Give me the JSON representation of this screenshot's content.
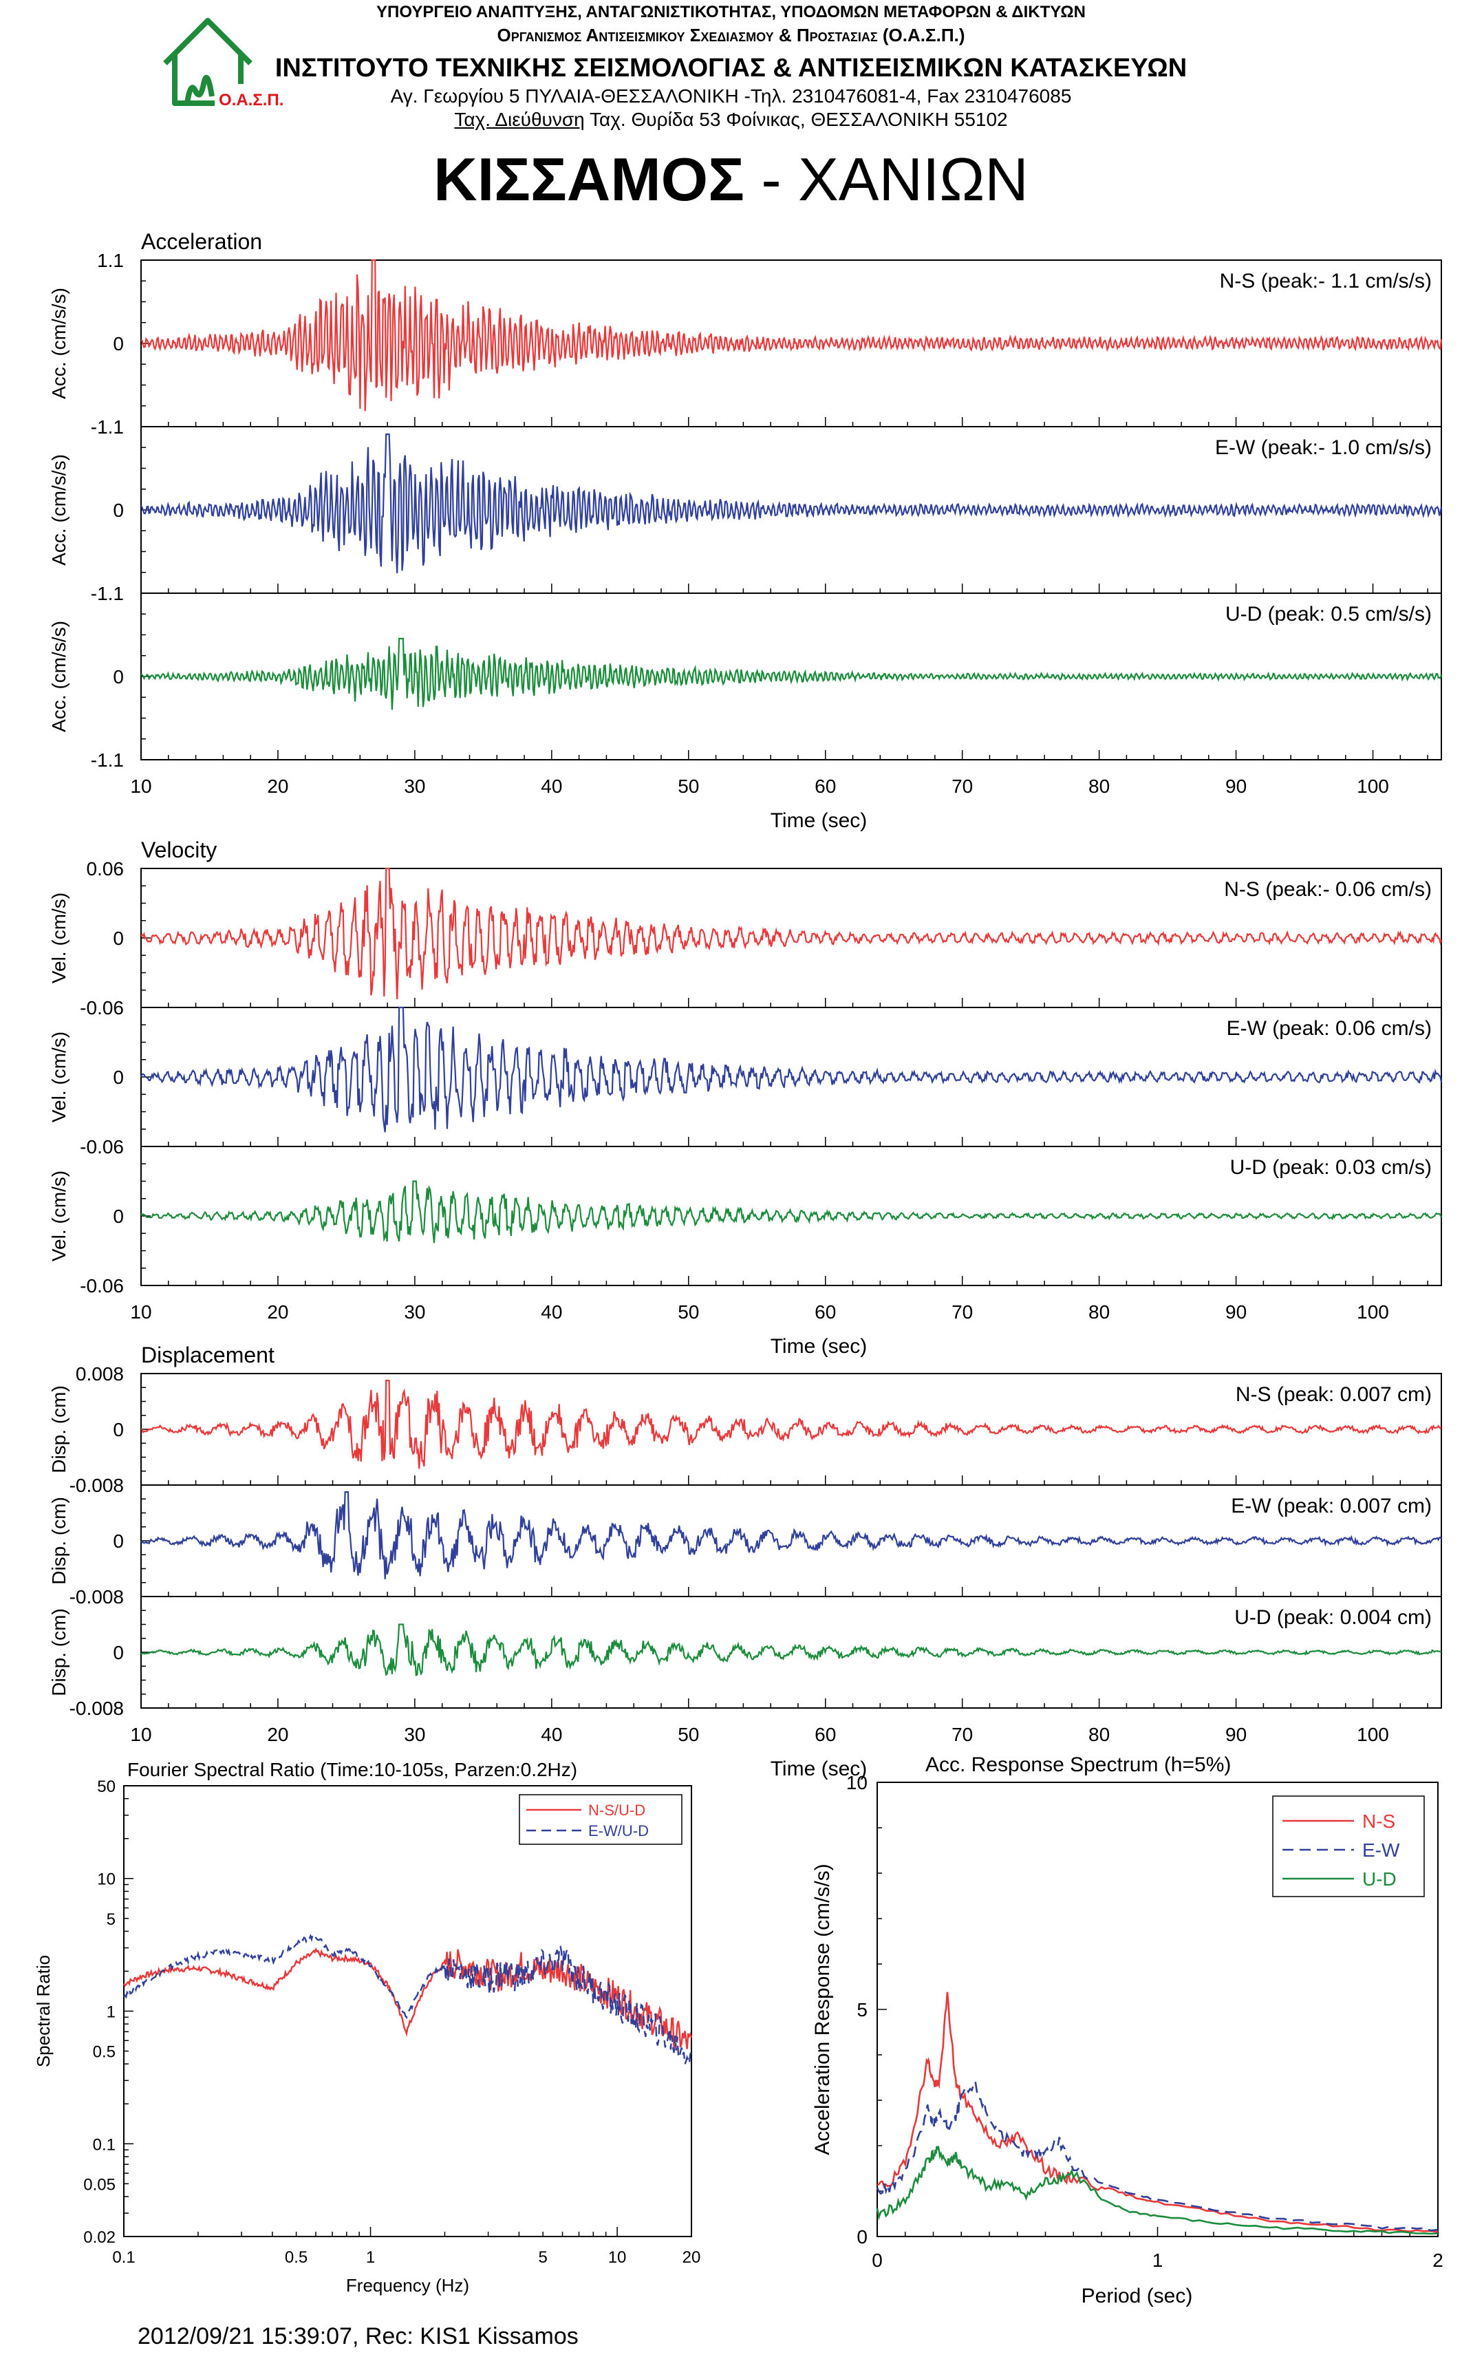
{
  "header": {
    "ministry": "ΥΠΟΥΡΓΕΙΟ ΑΝΑΠΤΥΞΗΣ, ΑΝΤΑΓΩΝΙΣΤΙΚΟΤΗΤΑΣ, ΥΠΟΔΟΜΩΝ ΜΕΤΑΦΟΡΩΝ & ΔΙΚΤΥΩΝ",
    "organization": "Οργανισμος Αντισεισμικου Σχεδιασμου & Προστασιας (Ο.Α.Σ.Π.)",
    "institute": "ΙΝΣΤΙΤΟΥΤΟ ΤΕΧΝΙΚΗΣ ΣΕΙΣΜΟΛΟΓΙΑΣ & ΑΝΤΙΣΕΙΣΜΙΚΩΝ ΚΑΤΑΣΚΕΥΩΝ",
    "address": "Αγ. Γεωργίου 5 ΠΥΛΑΙΑ-ΘΕΣΣΑΛΟΝΙΚΗ -Τηλ. 2310476081-4, Fax 2310476085",
    "postal_label": "Ταχ. Διεύθυνση",
    "postal": " Ταχ. Θυρίδα 53 Φοίνικας, ΘΕΣΣΑΛΟΝΙΚΗ 55102",
    "logo_text": "Ο.Α.Σ.Π.",
    "logo_color": "#e5141a",
    "logo_house_color": "#1f8a3a"
  },
  "title": {
    "bold": "ΚΙΣΣΑΜΟΣ",
    "rest": " - ΧΑΝΙΩΝ"
  },
  "footer": "2012/09/21 15:39:07, Rec: KIS1 Kissamos",
  "colors": {
    "ns": "#e8383a",
    "ew": "#2f3f9a",
    "ud": "#1a8c3c"
  },
  "chart_data": [
    {
      "type": "line",
      "title": "Acceleration",
      "xlabel": "Time (sec)",
      "xlim": [
        10,
        105
      ],
      "xticks": [
        "10",
        "20",
        "30",
        "40",
        "50",
        "60",
        "70",
        "80",
        "90",
        "100"
      ],
      "channels": [
        {
          "name": "N-S (peak:- 1.1 cm/s/s)",
          "ylabel": "Acc. (cm/s/s)",
          "ylim": [
            -1.1,
            1.1
          ],
          "yticks": [
            "1.1",
            "0",
            "-1.1"
          ],
          "color": "ns",
          "peak": 1.1,
          "t_peak": 27,
          "onset": 20,
          "decay": 12,
          "seed": 11
        },
        {
          "name": "E-W (peak:- 1.0 cm/s/s)",
          "ylabel": "Acc. (cm/s/s)",
          "ylim": [
            -1.1,
            1.1
          ],
          "yticks": [
            "0",
            "-1.1"
          ],
          "color": "ew",
          "peak": 1.0,
          "t_peak": 28,
          "onset": 20,
          "decay": 13,
          "seed": 23
        },
        {
          "name": "U-D (peak: 0.5 cm/s/s)",
          "ylabel": "Acc. (cm/s/s)",
          "ylim": [
            -1.1,
            1.1
          ],
          "yticks": [
            "0",
            "-1.1"
          ],
          "color": "ud",
          "peak": 0.5,
          "t_peak": 29,
          "onset": 20,
          "decay": 15,
          "seed": 37
        }
      ]
    },
    {
      "type": "line",
      "title": "Velocity",
      "xlabel": "Time (sec)",
      "xlim": [
        10,
        105
      ],
      "xticks": [
        "10",
        "20",
        "30",
        "40",
        "50",
        "60",
        "70",
        "80",
        "90",
        "100"
      ],
      "channels": [
        {
          "name": "N-S (peak:- 0.06 cm/s)",
          "ylabel": "Vel. (cm/s)",
          "ylim": [
            -0.06,
            0.06
          ],
          "yticks": [
            "0.06",
            "0",
            "-0.06"
          ],
          "color": "ns",
          "peak": 0.06,
          "t_peak": 28,
          "onset": 21,
          "decay": 14,
          "seed": 41
        },
        {
          "name": "E-W (peak: 0.06 cm/s)",
          "ylabel": "Vel. (cm/s)",
          "ylim": [
            -0.06,
            0.06
          ],
          "yticks": [
            "0",
            "-0.06"
          ],
          "color": "ew",
          "peak": 0.06,
          "t_peak": 29,
          "onset": 21,
          "decay": 15,
          "seed": 53
        },
        {
          "name": "U-D (peak: 0.03 cm/s)",
          "ylabel": "Vel. (cm/s)",
          "ylim": [
            -0.06,
            0.06
          ],
          "yticks": [
            "0",
            "-0.06"
          ],
          "color": "ud",
          "peak": 0.03,
          "t_peak": 30,
          "onset": 21,
          "decay": 16,
          "seed": 67
        }
      ]
    },
    {
      "type": "line",
      "title": "Displacement",
      "xlabel": "Time (sec)",
      "xlim": [
        10,
        105
      ],
      "xticks": [
        "10",
        "20",
        "30",
        "40",
        "50",
        "60",
        "70",
        "80",
        "90",
        "100"
      ],
      "channels": [
        {
          "name": "N-S (peak: 0.007 cm)",
          "ylabel": "Disp. (cm)",
          "ylim": [
            -0.008,
            0.008
          ],
          "yticks": [
            "0.008",
            "0",
            "-0.008"
          ],
          "color": "ns",
          "peak": 0.007,
          "t_peak": 28,
          "onset": 21,
          "decay": 20,
          "seed": 71
        },
        {
          "name": "E-W (peak: 0.007 cm)",
          "ylabel": "Disp. (cm)",
          "ylim": [
            -0.008,
            0.008
          ],
          "yticks": [
            "0",
            "-0.008"
          ],
          "color": "ew",
          "peak": 0.007,
          "t_peak": 25,
          "onset": 21,
          "decay": 22,
          "seed": 83
        },
        {
          "name": "U-D (peak: 0.004 cm)",
          "ylabel": "Disp. (cm)",
          "ylim": [
            -0.008,
            0.008
          ],
          "yticks": [
            "0",
            "-0.008"
          ],
          "color": "ud",
          "peak": 0.004,
          "t_peak": 29,
          "onset": 21,
          "decay": 22,
          "seed": 97
        }
      ]
    },
    {
      "type": "line",
      "title": "Fourier Spectral Ratio (Time:10-105s, Parzen:0.2Hz)",
      "xlabel": "Frequency (Hz)",
      "ylabel": "Spectral Ratio",
      "xscale": "log",
      "yscale": "log",
      "xlim": [
        0.1,
        20
      ],
      "ylim": [
        0.02,
        50
      ],
      "xticks": [
        "0.1",
        "0.5",
        "1",
        "5",
        "10",
        "20"
      ],
      "yticks": [
        "50",
        "10",
        "5",
        "1",
        "0.5",
        "0.1",
        "0.05",
        "0.02"
      ],
      "legend": "top-right",
      "series": [
        {
          "name": "N-S/U-D",
          "color": "ns",
          "dash": false,
          "x": [
            0.1,
            0.12,
            0.15,
            0.2,
            0.25,
            0.3,
            0.4,
            0.5,
            0.6,
            0.7,
            0.8,
            0.9,
            1.0,
            1.2,
            1.4,
            1.6,
            1.8,
            2.0,
            2.5,
            3.0,
            3.5,
            4.0,
            5.0,
            6.0,
            7.0,
            8.0,
            10,
            12,
            15,
            20
          ],
          "y": [
            1.6,
            1.85,
            2.05,
            2.1,
            1.95,
            1.75,
            1.5,
            2.3,
            2.8,
            2.5,
            2.5,
            2.4,
            2.3,
            1.5,
            0.7,
            1.3,
            1.9,
            2.3,
            2.2,
            1.9,
            1.8,
            2.2,
            2.0,
            2.1,
            1.8,
            1.5,
            1.3,
            1.0,
            0.8,
            0.55
          ]
        },
        {
          "name": "E-W/U-D",
          "color": "ew",
          "dash": true,
          "x": [
            0.1,
            0.12,
            0.15,
            0.2,
            0.25,
            0.3,
            0.4,
            0.5,
            0.6,
            0.7,
            0.8,
            0.9,
            1.0,
            1.2,
            1.4,
            1.6,
            1.8,
            2.0,
            2.5,
            3.0,
            3.5,
            4.0,
            5.0,
            6.0,
            7.0,
            8.0,
            10,
            12,
            15,
            20
          ],
          "y": [
            1.3,
            1.65,
            2.1,
            2.6,
            2.8,
            2.7,
            2.4,
            3.3,
            3.7,
            2.7,
            2.9,
            2.6,
            2.2,
            1.4,
            0.9,
            1.5,
            2.0,
            2.2,
            1.9,
            1.7,
            2.0,
            1.8,
            2.2,
            2.5,
            1.8,
            1.5,
            1.1,
            0.9,
            0.7,
            0.45
          ]
        }
      ]
    },
    {
      "type": "line",
      "title": "Acc. Response Spectrum (h=5%)",
      "xlabel": "Period (sec)",
      "ylabel": "Acceleration Response (cm/s/s)",
      "xlim": [
        0,
        2
      ],
      "ylim": [
        0,
        10
      ],
      "xticks": [
        "0",
        "1",
        "2"
      ],
      "yticks": [
        "10",
        "5",
        "0"
      ],
      "legend": "top-right",
      "series": [
        {
          "name": "N-S",
          "color": "ns",
          "dash": false,
          "x": [
            0,
            0.05,
            0.1,
            0.15,
            0.18,
            0.2,
            0.22,
            0.25,
            0.28,
            0.3,
            0.35,
            0.4,
            0.45,
            0.5,
            0.55,
            0.6,
            0.65,
            0.7,
            0.8,
            0.9,
            1.0,
            1.2,
            1.4,
            1.6,
            1.8,
            2.0
          ],
          "y": [
            1.1,
            1.2,
            1.6,
            3.0,
            3.9,
            3.4,
            3.3,
            5.3,
            3.4,
            3.1,
            2.7,
            2.2,
            2.0,
            2.2,
            1.9,
            1.5,
            1.3,
            1.3,
            1.1,
            0.9,
            0.75,
            0.55,
            0.35,
            0.25,
            0.15,
            0.1
          ]
        },
        {
          "name": "E-W",
          "color": "ew",
          "dash": true,
          "x": [
            0,
            0.05,
            0.1,
            0.15,
            0.18,
            0.2,
            0.22,
            0.25,
            0.28,
            0.3,
            0.35,
            0.4,
            0.45,
            0.5,
            0.55,
            0.6,
            0.65,
            0.7,
            0.8,
            0.9,
            1.0,
            1.2,
            1.4,
            1.6,
            1.8,
            2.0
          ],
          "y": [
            1.0,
            1.1,
            1.4,
            2.2,
            2.8,
            2.5,
            2.7,
            2.4,
            2.6,
            3.1,
            3.3,
            2.6,
            2.2,
            1.9,
            1.8,
            1.9,
            2.1,
            1.5,
            1.2,
            0.95,
            0.8,
            0.6,
            0.4,
            0.3,
            0.2,
            0.15
          ]
        },
        {
          "name": "U-D",
          "color": "ud",
          "dash": false,
          "x": [
            0,
            0.05,
            0.1,
            0.15,
            0.18,
            0.2,
            0.22,
            0.25,
            0.28,
            0.3,
            0.35,
            0.4,
            0.45,
            0.5,
            0.55,
            0.6,
            0.65,
            0.7,
            0.8,
            0.9,
            1.0,
            1.2,
            1.4,
            1.6,
            1.8,
            2.0
          ],
          "y": [
            0.5,
            0.6,
            0.8,
            1.3,
            1.7,
            1.8,
            1.9,
            1.6,
            1.8,
            1.5,
            1.3,
            1.1,
            1.2,
            1.0,
            0.95,
            1.2,
            1.3,
            1.4,
            0.8,
            0.55,
            0.45,
            0.3,
            0.2,
            0.15,
            0.1,
            0.07
          ]
        }
      ]
    }
  ]
}
